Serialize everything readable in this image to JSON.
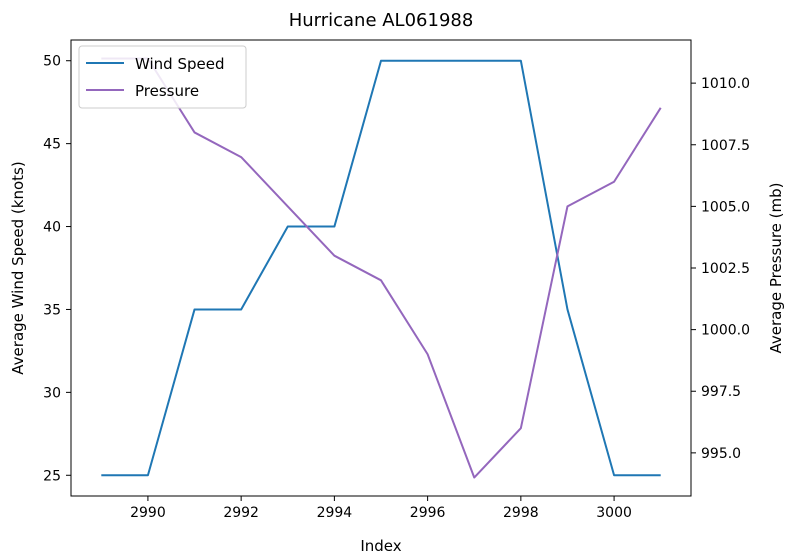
{
  "chart_data": {
    "type": "line",
    "title": "Hurricane AL061988",
    "xlabel": "Index",
    "ylabel_left": "Average Wind Speed (knots)",
    "ylabel_right": "Average Pressure (mb)",
    "x": [
      2989,
      2990,
      2991,
      2992,
      2993,
      2994,
      2995,
      2996,
      2997,
      2998,
      2999,
      3000,
      3001
    ],
    "xlim": [
      2988.35,
      3001.65
    ],
    "ylim_left": [
      23.75,
      51.25
    ],
    "ylim_right": [
      993.25,
      1011.75
    ],
    "x_ticks": [
      2990,
      2992,
      2994,
      2996,
      2998,
      3000
    ],
    "x_tick_labels": [
      "2990",
      "2992",
      "2994",
      "2996",
      "2998",
      "3000"
    ],
    "y_left_ticks": [
      25,
      30,
      35,
      40,
      45,
      50
    ],
    "y_left_tick_labels": [
      "25",
      "30",
      "35",
      "40",
      "45",
      "50"
    ],
    "y_right_ticks": [
      995.0,
      997.5,
      1000.0,
      1002.5,
      1005.0,
      1007.5,
      1010.0
    ],
    "y_right_tick_labels": [
      "995.0",
      "997.5",
      "1000.0",
      "1002.5",
      "1005.0",
      "1007.5",
      "1010.0"
    ],
    "grid": false,
    "legend_position": "top-left",
    "series": [
      {
        "name": "Wind Speed",
        "axis": "left",
        "color": "#1f77b4",
        "values": [
          25,
          25,
          35,
          35,
          40,
          40,
          50,
          50,
          50,
          50,
          35,
          25,
          25
        ]
      },
      {
        "name": "Pressure",
        "axis": "right",
        "color": "#9467bd",
        "values": [
          1011,
          1011,
          1008,
          1007,
          1005,
          1003,
          1002,
          999,
          994,
          996,
          1005,
          1006,
          1009
        ]
      }
    ]
  }
}
